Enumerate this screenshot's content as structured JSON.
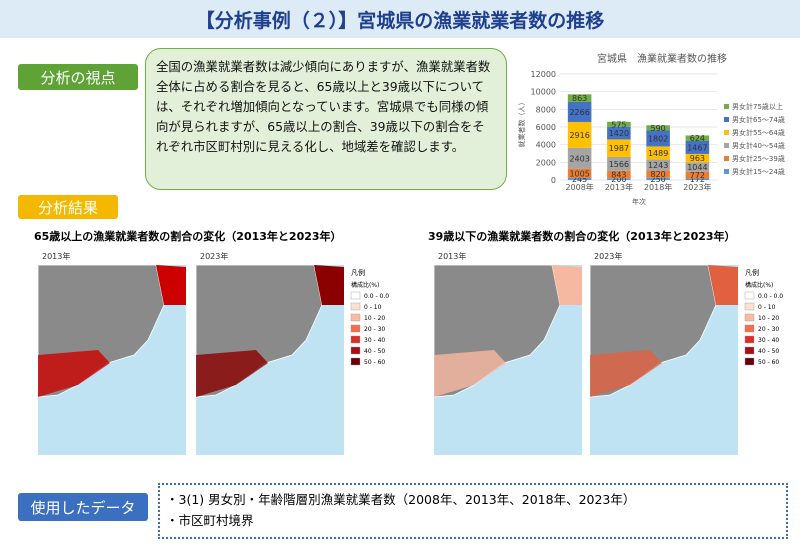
{
  "header": {
    "title": "【分析事例（２）】宮城県の漁業就業者数の推移"
  },
  "viewpoint": {
    "label": "分析の視点",
    "text": "全国の漁業就業者数は減少傾向にありますが、漁業就業者数全体に占める割合を見ると、65歳以上と39歳以下については、それぞれ増加傾向となっています。宮城県でも同様の傾向が見られますが、65歳以上の割合、39歳以下の割合をそれぞれ市区町村別に見える化し、地域差を確認します。"
  },
  "chart": {
    "type": "stacked-bar",
    "title": "宮城県　漁業就業者数の推移",
    "y_label": "就業者数（人）",
    "x_label": "年次",
    "categories": [
      "2008年",
      "2013年",
      "2018年",
      "2023年"
    ],
    "ylim": [
      0,
      12000
    ],
    "yticks": [
      0,
      2000,
      4000,
      6000,
      8000,
      10000,
      12000
    ],
    "series": [
      {
        "name": "男女計15～24歳",
        "color": "#5b9bd5",
        "values": [
          245,
          200,
          250,
          172
        ]
      },
      {
        "name": "男女計25～39歳",
        "color": "#ed7d31",
        "values": [
          1005,
          843,
          820,
          772
        ]
      },
      {
        "name": "男女計40～54歳",
        "color": "#a5a5a5",
        "values": [
          2403,
          1566,
          1243,
          1044
        ]
      },
      {
        "name": "男女計55～64歳",
        "color": "#ffc000",
        "values": [
          2916,
          1987,
          1489,
          963
        ]
      },
      {
        "name": "男女計65～74歳",
        "color": "#4472c4",
        "values": [
          2266,
          1420,
          1802,
          1467
        ]
      },
      {
        "name": "男女計75歳以上",
        "color": "#70ad47",
        "values": [
          863,
          575,
          590,
          624
        ]
      }
    ]
  },
  "results": {
    "label": "分析結果",
    "maps": [
      {
        "title": "65歳以上の漁業就業者数の割合の変化（2013年と2023年）",
        "years": [
          "2013年",
          "2023年"
        ]
      },
      {
        "title": "39歳以下の漁業就業者数の割合の変化（2013年と2023年）",
        "years": [
          "2013年",
          "2023年"
        ]
      }
    ],
    "legend": {
      "title": "凡例",
      "subtitle": "構成比(%)",
      "items": [
        "0.0 - 0.0",
        "0 - 10",
        "10 - 20",
        "20 - 30",
        "30 - 40",
        "40 - 50",
        "50 - 60"
      ]
    }
  },
  "data_used": {
    "label": "使用したデータ",
    "items": [
      "・3(1) 男女別・年齢階層別漁業就業者数（2008年、2013年、2018年、2023年）",
      "・市区町村境界"
    ]
  }
}
